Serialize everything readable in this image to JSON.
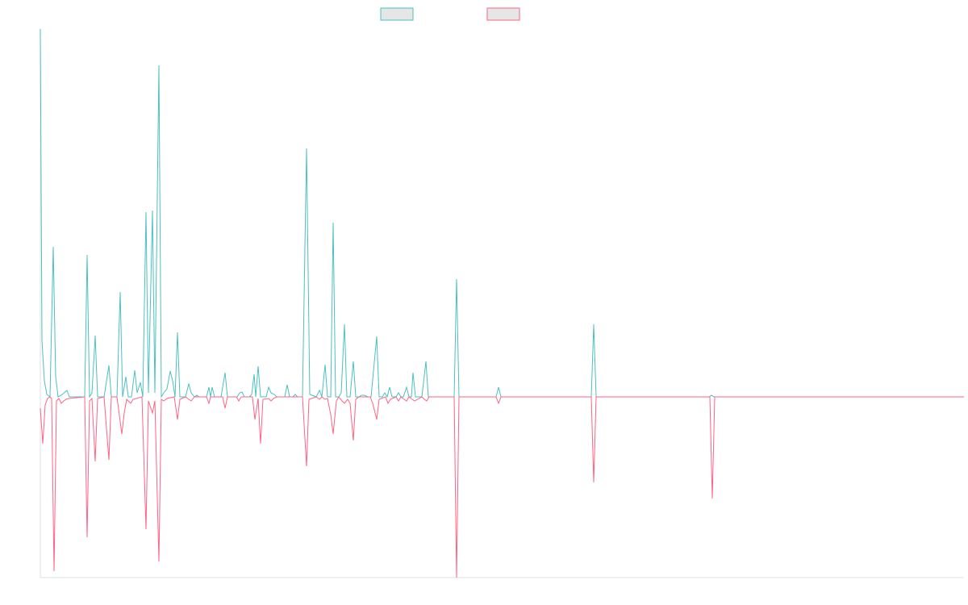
{
  "chart_data": {
    "type": "line",
    "xlim": [
      0,
      1145
    ],
    "ylim": [
      -224,
      457
    ],
    "series": [
      {
        "color": "#4bc0c0",
        "x": [
          0,
          2,
          5,
          8,
          12,
          16,
          19,
          22,
          26,
          33,
          36,
          55,
          58,
          61,
          64,
          68,
          71,
          79,
          85,
          88,
          95,
          99,
          102,
          106,
          109,
          113,
          117,
          120,
          124,
          127,
          131,
          134,
          139,
          142,
          147,
          150,
          153,
          157,
          161,
          164,
          167,
          170,
          173,
          180,
          184,
          187,
          191,
          194,
          197,
          206,
          209,
          211,
          213,
          216,
          224,
          229,
          232,
          244,
          247,
          250,
          253,
          259,
          262,
          265,
          267,
          270,
          273,
          280,
          283,
          286,
          290,
          293,
          303,
          306,
          309,
          313,
          316,
          319,
          325,
          330,
          334,
          337,
          342,
          346,
          349,
          353,
          356,
          360,
          363,
          366,
          370,
          373,
          377,
          380,
          384,
          388,
          391,
          395,
          398,
          402,
          406,
          410,
          417,
          420,
          424,
          427,
          430,
          433,
          436,
          441,
          444,
          447,
          450,
          454,
          457,
          460,
          462,
          465,
          473,
          478,
          481,
          490,
          495,
          513,
          516,
          519,
          565,
          568,
          571,
          587,
          683,
          686,
          689,
          829,
          832,
          835,
          1145
        ],
        "values": [
          456,
          70,
          20,
          3,
          0,
          186,
          25,
          0,
          2,
          8,
          0,
          0,
          176,
          0,
          5,
          76,
          0,
          0,
          39,
          0,
          0,
          130,
          0,
          25,
          0,
          0,
          33,
          5,
          18,
          0,
          229,
          5,
          231,
          5,
          411,
          0,
          5,
          10,
          32,
          20,
          0,
          80,
          0,
          0,
          16,
          5,
          0,
          2,
          0,
          0,
          12,
          0,
          12,
          0,
          0,
          30,
          0,
          0,
          5,
          6,
          0,
          0,
          3,
          28,
          0,
          38,
          0,
          0,
          12,
          5,
          3,
          0,
          0,
          15,
          0,
          0,
          3,
          0,
          0,
          308,
          3,
          2,
          0,
          8,
          0,
          40,
          0,
          0,
          216,
          0,
          0,
          5,
          90,
          0,
          0,
          44,
          0,
          0,
          2,
          2,
          0,
          0,
          75,
          0,
          0,
          5,
          0,
          12,
          0,
          0,
          5,
          0,
          0,
          12,
          0,
          0,
          30,
          0,
          0,
          44,
          0,
          0,
          0,
          0,
          146,
          0,
          0,
          12,
          0,
          0,
          0,
          90,
          0,
          0,
          2,
          0,
          0
        ]
      },
      {
        "color": "#ff6384",
        "x": [
          0,
          3,
          6,
          9,
          12,
          14,
          17,
          20,
          23,
          26,
          29,
          32,
          35,
          55,
          58,
          61,
          64,
          68,
          71,
          79,
          85,
          88,
          95,
          101,
          104,
          107,
          112,
          115,
          126,
          131,
          134,
          139,
          142,
          147,
          150,
          153,
          157,
          166,
          170,
          173,
          180,
          184,
          187,
          191,
          206,
          209,
          211,
          226,
          229,
          232,
          243,
          246,
          249,
          263,
          266,
          270,
          273,
          276,
          283,
          286,
          289,
          293,
          325,
          330,
          333,
          342,
          346,
          349,
          353,
          356,
          360,
          363,
          367,
          370,
          374,
          377,
          381,
          384,
          388,
          391,
          395,
          409,
          412,
          417,
          420,
          428,
          431,
          434,
          441,
          444,
          447,
          451,
          454,
          457,
          461,
          464,
          473,
          476,
          479,
          482,
          513,
          516,
          519,
          565,
          568,
          571,
          683,
          686,
          689,
          830,
          833,
          836,
          1145
        ],
        "values": [
          -14,
          -58,
          -10,
          -2,
          0,
          -2,
          -216,
          -5,
          -2,
          -8,
          -5,
          -3,
          -2,
          0,
          -174,
          -5,
          -2,
          -80,
          -2,
          0,
          -78,
          0,
          0,
          -46,
          -20,
          -3,
          -8,
          -3,
          0,
          -164,
          -5,
          -20,
          -5,
          -204,
          -3,
          -5,
          -2,
          0,
          -28,
          -3,
          0,
          -3,
          -5,
          0,
          0,
          -8,
          0,
          0,
          -14,
          0,
          0,
          -5,
          0,
          0,
          -28,
          -2,
          -58,
          -3,
          -2,
          -5,
          -2,
          0,
          0,
          -86,
          -3,
          0,
          -3,
          0,
          -3,
          -2,
          -22,
          -46,
          -5,
          0,
          -5,
          -8,
          -3,
          -8,
          -54,
          -3,
          0,
          0,
          -8,
          -28,
          -3,
          0,
          -8,
          -3,
          0,
          -5,
          0,
          -3,
          -5,
          0,
          -3,
          -5,
          0,
          -3,
          -5,
          0,
          0,
          -224,
          0,
          0,
          -8,
          0,
          0,
          -106,
          0,
          0,
          -126,
          0,
          0
        ]
      }
    ]
  }
}
